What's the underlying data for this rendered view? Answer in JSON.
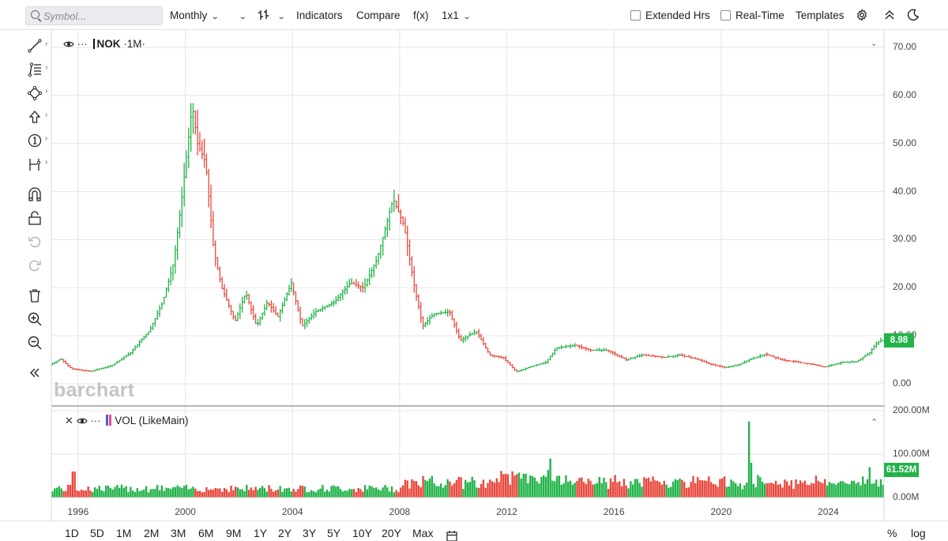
{
  "toolbar": {
    "search_placeholder": "Symbol...",
    "interval": "Monthly",
    "indicators": "Indicators",
    "compare": "Compare",
    "fx": "f(x)",
    "layout": "1x1",
    "extended_hrs": "Extended Hrs",
    "real_time": "Real-Time",
    "templates": "Templates",
    "extended_checked": false,
    "realtime_checked": false
  },
  "legend": {
    "main_symbol": "NOK",
    "main_interval": "·1M·",
    "vol_label": "VOL (LikeMain)"
  },
  "brand": "barchart",
  "ranges": [
    "1D",
    "5D",
    "1M",
    "2M",
    "3M",
    "6M",
    "9M",
    "1Y",
    "2Y",
    "3Y",
    "5Y",
    "10Y",
    "20Y",
    "Max"
  ],
  "bottom_right": {
    "percent": "%",
    "log": "log"
  },
  "colors": {
    "up": "#22b34a",
    "down": "#e8483c",
    "grid": "#e5e5e5"
  },
  "icons": [
    "line-tool-icon",
    "fib-tool-icon",
    "shape-tool-icon",
    "arrow-tool-icon",
    "number-marker-icon",
    "measure-tool-icon",
    "magnet-icon",
    "lock-icon",
    "undo-icon",
    "redo-icon",
    "trash-icon",
    "zoom-in-icon",
    "zoom-out-icon",
    "collapse-icon",
    "calendar-icon",
    "gear-icon",
    "chevron-up-icon",
    "dark-mode-icon",
    "eye-icon"
  ],
  "chart_data": {
    "type": "bar",
    "symbol": "NOK",
    "interval": "Monthly",
    "price_axis": {
      "labels": [
        "70.00",
        "60.00",
        "50.00",
        "40.00",
        "30.00",
        "20.00",
        "10.00",
        "0.00"
      ],
      "range": [
        0,
        70
      ]
    },
    "volume_axis": {
      "labels": [
        "200.00M",
        "100.00M",
        "0.00M"
      ],
      "range": [
        0,
        200
      ]
    },
    "x_labels": [
      "1996",
      "2000",
      "2004",
      "2008",
      "2012",
      "2016",
      "2020",
      "2024"
    ],
    "last_price": "8.98",
    "last_volume": "61.52M",
    "price_path": [
      [
        1995.0,
        4.0
      ],
      [
        1995.4,
        5.2
      ],
      [
        1995.8,
        3.1
      ],
      [
        1996.5,
        2.6
      ],
      [
        1997.3,
        3.8
      ],
      [
        1998.0,
        6.5
      ],
      [
        1998.7,
        11.0
      ],
      [
        1999.2,
        17.0
      ],
      [
        1999.6,
        25.0
      ],
      [
        1999.9,
        38.0
      ],
      [
        2000.3,
        58.0
      ],
      [
        2000.5,
        50.0
      ],
      [
        2000.8,
        46.0
      ],
      [
        2001.1,
        28.0
      ],
      [
        2001.4,
        20.0
      ],
      [
        2001.9,
        13.0
      ],
      [
        2002.3,
        19.0
      ],
      [
        2002.7,
        12.0
      ],
      [
        2003.1,
        17.0
      ],
      [
        2003.5,
        14.0
      ],
      [
        2004.0,
        21.0
      ],
      [
        2004.4,
        12.0
      ],
      [
        2004.9,
        15.0
      ],
      [
        2005.6,
        17.0
      ],
      [
        2006.2,
        21.0
      ],
      [
        2006.7,
        20.0
      ],
      [
        2007.2,
        26.0
      ],
      [
        2007.8,
        38.5
      ],
      [
        2008.2,
        33.0
      ],
      [
        2008.6,
        20.0
      ],
      [
        2008.9,
        12.0
      ],
      [
        2009.3,
        14.5
      ],
      [
        2009.9,
        15.0
      ],
      [
        2010.3,
        9.0
      ],
      [
        2010.9,
        11.0
      ],
      [
        2011.4,
        6.0
      ],
      [
        2011.9,
        5.5
      ],
      [
        2012.4,
        2.5
      ],
      [
        2012.9,
        3.5
      ],
      [
        2013.5,
        4.5
      ],
      [
        2013.9,
        7.5
      ],
      [
        2014.6,
        8.0
      ],
      [
        2015.2,
        7.0
      ],
      [
        2015.8,
        7.0
      ],
      [
        2016.5,
        5.0
      ],
      [
        2017.1,
        6.0
      ],
      [
        2017.9,
        5.5
      ],
      [
        2018.5,
        6.0
      ],
      [
        2019.1,
        5.2
      ],
      [
        2019.7,
        4.0
      ],
      [
        2020.2,
        3.4
      ],
      [
        2020.7,
        4.0
      ],
      [
        2021.1,
        5.0
      ],
      [
        2021.7,
        6.2
      ],
      [
        2022.3,
        5.0
      ],
      [
        2022.9,
        4.5
      ],
      [
        2023.5,
        4.0
      ],
      [
        2023.9,
        3.5
      ],
      [
        2024.6,
        4.5
      ],
      [
        2025.1,
        4.6
      ],
      [
        2025.6,
        6.6
      ],
      [
        2025.8,
        8.2
      ],
      [
        2026.0,
        8.98
      ]
    ],
    "volume_spikes": [
      [
        1995.8,
        60
      ],
      [
        2013.6,
        90
      ],
      [
        2021.0,
        175
      ],
      [
        2021.1,
        80
      ],
      [
        2025.5,
        70
      ]
    ]
  }
}
